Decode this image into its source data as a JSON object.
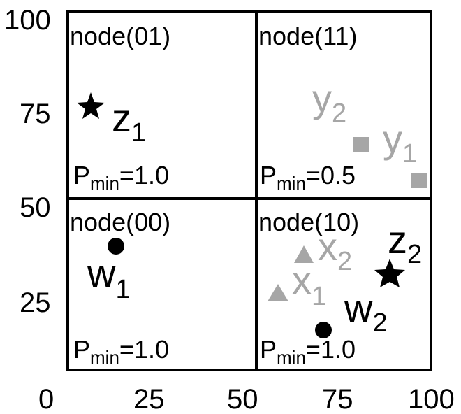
{
  "axes": {
    "x_ticks": [
      "0",
      "25",
      "50",
      "75",
      "100"
    ],
    "y_ticks": [
      "100",
      "75",
      "50",
      "25"
    ]
  },
  "nodes": [
    {
      "id": "node-01",
      "label": "node(01)",
      "pmin_main": "P",
      "pmin_sub": "min",
      "pmin_value": "=1.0"
    },
    {
      "id": "node-11",
      "label": "node(11)",
      "pmin_main": "P",
      "pmin_sub": "min",
      "pmin_value": "=0.5"
    },
    {
      "id": "node-00",
      "label": "node(00)",
      "pmin_main": "P",
      "pmin_sub": "min",
      "pmin_value": "=1.0"
    },
    {
      "id": "node-10",
      "label": "node(10)",
      "pmin_main": "P",
      "pmin_sub": "min",
      "pmin_value": "=1.0"
    }
  ],
  "points": [
    {
      "name": "z1",
      "base": "z",
      "sub": "1",
      "marker": "star",
      "color": "black",
      "x": 7,
      "y": 77
    },
    {
      "name": "z2",
      "base": "z",
      "sub": "2",
      "marker": "star",
      "color": "black",
      "x": 88,
      "y": 32
    },
    {
      "name": "w1",
      "base": "w",
      "sub": "1",
      "marker": "circle",
      "color": "black",
      "x": 15,
      "y": 39
    },
    {
      "name": "w2",
      "base": "w",
      "sub": "2",
      "marker": "circle",
      "color": "black",
      "x": 70,
      "y": 16
    },
    {
      "name": "y1",
      "base": "y",
      "sub": "1",
      "marker": "square",
      "color": "gray",
      "x": 96,
      "y": 56
    },
    {
      "name": "y2",
      "base": "y",
      "sub": "2",
      "marker": "square",
      "color": "gray",
      "x": 80,
      "y": 66
    },
    {
      "name": "x1",
      "base": "x",
      "sub": "1",
      "marker": "triangle",
      "color": "gray",
      "x": 56,
      "y": 27
    },
    {
      "name": "x2",
      "base": "x",
      "sub": "2",
      "marker": "triangle",
      "color": "gray",
      "x": 63,
      "y": 37
    }
  ],
  "colors": {
    "black": "#000000",
    "gray": "#a6a6a6"
  }
}
